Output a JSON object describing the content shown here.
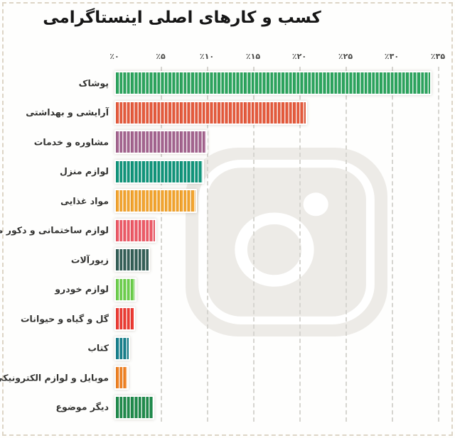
{
  "title": "کسب و کارهای اصلی اینستاگرامی",
  "axis": {
    "tick_labels": [
      "٪۰",
      "٪۵",
      "٪۱۰",
      "٪۱۵",
      "٪۲۰",
      "٪۲۵",
      "٪۳۰",
      "٪۳۵"
    ],
    "tick_values": [
      0,
      5,
      10,
      15,
      20,
      25,
      30,
      35
    ]
  },
  "watermark": {
    "icon": "instagram-logo",
    "color": "#edebe7"
  },
  "chart_data": {
    "type": "bar",
    "orientation": "horizontal",
    "title": "کسب و کارهای اصلی اینستاگرامی",
    "unit": "%",
    "xlim": [
      0,
      35
    ],
    "grid": true,
    "grid_style": "dashed-vertical",
    "categories": [
      "پوشاک",
      "آرایشی و بهداشتی",
      "مشاوره و خدمات",
      "لوازم منزل",
      "مواد غذایی",
      "لوازم ساختمانی و دکور منزل",
      "زیورآلات",
      "لوازم خودرو",
      "گل و گیاه و حیوانات",
      "کتاب",
      "موبایل و لوازم الکترونیکی",
      "دیگر موضوع"
    ],
    "values": [
      34,
      20.5,
      9.8,
      9.4,
      8.6,
      4.2,
      3.5,
      2.1,
      1.9,
      1.4,
      1.2,
      4
    ],
    "bar_colors": [
      "#2ca55e",
      "#e65b3d",
      "#a4648f",
      "#10957b",
      "#f4a52f",
      "#ee5a67",
      "#345f57",
      "#6ed04d",
      "#ed3b33",
      "#17808c",
      "#f08223",
      "#208b4c"
    ]
  }
}
